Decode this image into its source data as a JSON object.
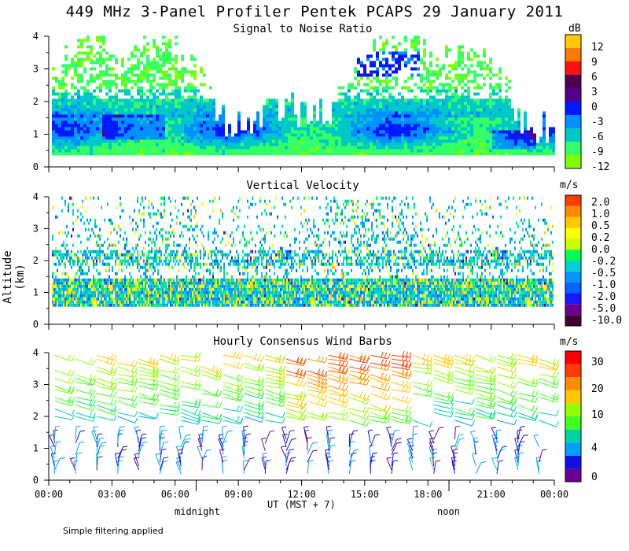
{
  "title": "449 MHz 3-Panel Profiler Pentek PCAPS 29 January 2011",
  "y_axis_title": "Altitude (km)",
  "x_axis": {
    "ticks": [
      "00:00",
      "03:00",
      "06:00",
      "09:00",
      "12:00",
      "15:00",
      "18:00",
      "21:00",
      "00:00"
    ],
    "label": "UT  (MST + 7)",
    "markers": {
      "midnight": "midnight",
      "noon": "noon"
    }
  },
  "footnote": "Simple filtering applied",
  "colors": {
    "snr_scale": [
      "#80ff00",
      "#33ff66",
      "#00c8c8",
      "#0090ff",
      "#0018ff",
      "#50008c",
      "#500050",
      "#ff1010",
      "#ff7800",
      "#ffc800"
    ],
    "vv_scale": [
      "#3c0032",
      "#6c0090",
      "#1818ff",
      "#0064ff",
      "#0096ff",
      "#00d2d2",
      "#00ff50",
      "#c8ff00",
      "#ffff00",
      "#ffc800",
      "#ff8c00",
      "#ff3c00"
    ],
    "wind_scale": [
      "#6c0090",
      "#1010e0",
      "#00a0ff",
      "#00d2a0",
      "#40ff20",
      "#90ff00",
      "#ffc800",
      "#ff8c00",
      "#ff3c00",
      "#ff0000"
    ]
  },
  "chart_data": [
    {
      "type": "heatmap",
      "title": "Signal to Noise Ratio",
      "unit": "dB",
      "xlabel": "UT (MST + 7)",
      "ylabel": "Altitude (km)",
      "xlim": [
        0,
        24
      ],
      "ylim": [
        0,
        4
      ],
      "yticks": [
        0,
        1,
        2,
        3,
        4
      ],
      "colorbar_ticks": [
        12,
        9,
        6,
        3,
        0,
        -3,
        -6,
        -9,
        -12
      ],
      "notes": "Strongest returns (0 to 6 dB) near 1-1.5 km around 03:00-05:00 and 22:00; elevated 3-3.5 km layer 15:00-17:00."
    },
    {
      "type": "heatmap",
      "title": "Vertical Velocity",
      "unit": "m/s",
      "xlabel": "UT (MST + 7)",
      "ylabel": "Altitude (km)",
      "xlim": [
        0,
        24
      ],
      "ylim": [
        0,
        4
      ],
      "yticks": [
        0,
        1,
        2,
        3,
        4
      ],
      "colorbar_ticks": [
        "2.0",
        "1.0",
        "0.5",
        "0.2",
        "0.0",
        "-0.2",
        "-0.5",
        "-1.0",
        "-2.0",
        "-5.0",
        "-10.0"
      ],
      "notes": "Mostly -0.5 to 0.2 m/s below 2 km; sparse returns 2.5-4 km."
    },
    {
      "type": "wind_barbs",
      "title": "Hourly Consensus Wind Barbs",
      "unit": "m/s",
      "xlabel": "UT (MST + 7)",
      "ylabel": "Altitude (km)",
      "xlim": [
        0,
        24
      ],
      "ylim": [
        0,
        4
      ],
      "yticks": [
        0,
        1,
        2,
        3,
        4
      ],
      "colorbar_ticks": [
        30,
        20,
        10,
        4,
        0
      ],
      "notes": "Speeds 20-28 m/s above 3 km 12:00-16:00; 2-10 m/s below 1.5 km."
    }
  ]
}
